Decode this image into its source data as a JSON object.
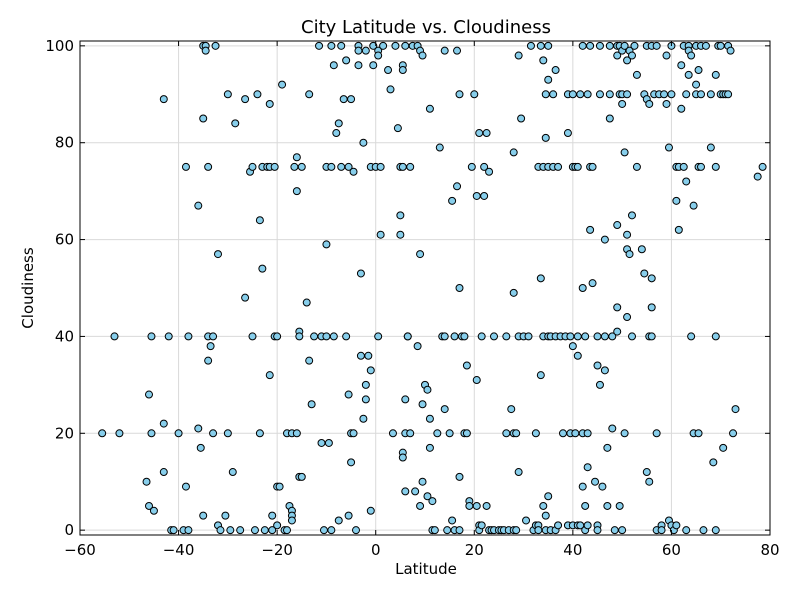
{
  "chart_data": {
    "type": "scatter",
    "title": "City Latitude vs. Cloudiness",
    "xlabel": "Latitude",
    "ylabel": "Cloudiness",
    "xlim": [
      -60,
      80
    ],
    "ylim": [
      -1,
      101
    ],
    "xticks": [
      -60,
      -40,
      -20,
      0,
      20,
      40,
      60,
      80
    ],
    "yticks": [
      0,
      20,
      40,
      60,
      80,
      100
    ],
    "grid": true,
    "colors": {
      "marker_fill": "#87ceeb",
      "marker_edge": "#000000",
      "grid": "#d9d9d9"
    },
    "points": [
      [
        -55.5,
        20
      ],
      [
        -53,
        40
      ],
      [
        -52,
        20
      ],
      [
        -46.5,
        10
      ],
      [
        -46,
        28
      ],
      [
        -46,
        5
      ],
      [
        -45.5,
        40
      ],
      [
        -45.5,
        20
      ],
      [
        -45,
        4
      ],
      [
        -43,
        89
      ],
      [
        -43,
        22
      ],
      [
        -43,
        12
      ],
      [
        -42,
        40
      ],
      [
        -41.5,
        0
      ],
      [
        -41,
        0
      ],
      [
        -40,
        20
      ],
      [
        -39,
        0
      ],
      [
        -38.5,
        75
      ],
      [
        -38,
        40
      ],
      [
        -38,
        0
      ],
      [
        -38.5,
        9
      ],
      [
        -36,
        67
      ],
      [
        -36,
        21
      ],
      [
        -35.5,
        17
      ],
      [
        -35,
        100
      ],
      [
        -35,
        85
      ],
      [
        -35,
        3
      ],
      [
        -34.5,
        100
      ],
      [
        -34.5,
        99
      ],
      [
        -34,
        75
      ],
      [
        -34,
        40
      ],
      [
        -34,
        35
      ],
      [
        -33.5,
        38
      ],
      [
        -33,
        40
      ],
      [
        -33,
        20
      ],
      [
        -32.5,
        100
      ],
      [
        -32,
        57
      ],
      [
        -32,
        1
      ],
      [
        -31.5,
        0
      ],
      [
        -30.5,
        3
      ],
      [
        -30,
        20
      ],
      [
        -30,
        90
      ],
      [
        -29.5,
        0
      ],
      [
        -29,
        12
      ],
      [
        -28.5,
        84
      ],
      [
        -27.5,
        0
      ],
      [
        -26.5,
        89
      ],
      [
        -26.5,
        48
      ],
      [
        -25.5,
        74
      ],
      [
        -25,
        75
      ],
      [
        -25,
        40
      ],
      [
        -24.5,
        0
      ],
      [
        -24,
        90
      ],
      [
        -23.5,
        20
      ],
      [
        -23.5,
        64
      ],
      [
        -23,
        54
      ],
      [
        -23,
        75
      ],
      [
        -22.5,
        0
      ],
      [
        -22,
        75
      ],
      [
        -21.5,
        88
      ],
      [
        -21.5,
        75
      ],
      [
        -21.5,
        32
      ],
      [
        -21,
        3
      ],
      [
        -21,
        0
      ],
      [
        -20.5,
        75
      ],
      [
        -20.5,
        40
      ],
      [
        -20,
        40
      ],
      [
        -20,
        9
      ],
      [
        -20,
        1
      ],
      [
        -19.5,
        9
      ],
      [
        -19,
        92
      ],
      [
        -18.5,
        0
      ],
      [
        -18,
        0
      ],
      [
        -18,
        20
      ],
      [
        -17.5,
        5
      ],
      [
        -17,
        4
      ],
      [
        -17,
        3
      ],
      [
        -17,
        20
      ],
      [
        -17,
        2
      ],
      [
        -16.5,
        75
      ],
      [
        -16,
        70
      ],
      [
        -16,
        77
      ],
      [
        -16,
        20
      ],
      [
        -15.5,
        41
      ],
      [
        -15.5,
        11
      ],
      [
        -15.5,
        40
      ],
      [
        -15,
        11
      ],
      [
        -15,
        75
      ],
      [
        -14,
        47
      ],
      [
        -13.5,
        90
      ],
      [
        -13.5,
        35
      ],
      [
        -13,
        26
      ],
      [
        -12.5,
        40
      ],
      [
        -11.5,
        100
      ],
      [
        -11,
        40
      ],
      [
        -11,
        18
      ],
      [
        -10.5,
        0
      ],
      [
        -10,
        59
      ],
      [
        -10,
        40
      ],
      [
        -10,
        75
      ],
      [
        -9.5,
        18
      ],
      [
        -9,
        100
      ],
      [
        -9,
        75
      ],
      [
        -9,
        0
      ],
      [
        -8.5,
        96
      ],
      [
        -8,
        82
      ],
      [
        -8.5,
        40
      ],
      [
        -7.5,
        2
      ],
      [
        -7.5,
        84
      ],
      [
        -7,
        100
      ],
      [
        -7,
        75
      ],
      [
        -6.5,
        89
      ],
      [
        -6,
        40
      ],
      [
        -6,
        97
      ],
      [
        -5.5,
        75
      ],
      [
        -5.5,
        28
      ],
      [
        -5.5,
        3
      ],
      [
        -5,
        14
      ],
      [
        -5,
        89
      ],
      [
        -5,
        20
      ],
      [
        -4.5,
        74
      ],
      [
        -4.5,
        20
      ],
      [
        -4,
        0
      ],
      [
        -3.5,
        100
      ],
      [
        -3.5,
        99
      ],
      [
        -3.5,
        96
      ],
      [
        -3,
        53
      ],
      [
        -3,
        36
      ],
      [
        -2.5,
        80
      ],
      [
        -2.5,
        23
      ],
      [
        -2,
        27
      ],
      [
        -2,
        30
      ],
      [
        -2,
        99
      ],
      [
        -1.5,
        36
      ],
      [
        -1,
        75
      ],
      [
        -1,
        4
      ],
      [
        -1,
        33
      ],
      [
        -0.5,
        100
      ],
      [
        -0.5,
        96
      ],
      [
        0,
        75
      ],
      [
        0.5,
        40
      ],
      [
        0.5,
        99
      ],
      [
        0.5,
        98
      ],
      [
        1,
        61
      ],
      [
        1,
        75
      ],
      [
        1.5,
        100
      ],
      [
        2.5,
        95
      ],
      [
        3,
        91
      ],
      [
        3.5,
        20
      ],
      [
        4,
        100
      ],
      [
        4.5,
        83
      ],
      [
        5,
        75
      ],
      [
        5,
        61
      ],
      [
        5,
        65
      ],
      [
        5.5,
        96
      ],
      [
        5.5,
        95
      ],
      [
        5.5,
        75
      ],
      [
        5.5,
        16
      ],
      [
        5.5,
        15
      ],
      [
        6,
        27
      ],
      [
        6,
        20
      ],
      [
        6,
        8
      ],
      [
        6,
        100
      ],
      [
        6.5,
        40
      ],
      [
        6.5,
        40
      ],
      [
        7,
        75
      ],
      [
        7,
        20
      ],
      [
        7.5,
        100
      ],
      [
        8,
        8
      ],
      [
        8.5,
        100
      ],
      [
        8.5,
        38
      ],
      [
        9,
        57
      ],
      [
        9,
        99
      ],
      [
        9,
        5
      ],
      [
        9.5,
        98
      ],
      [
        9.5,
        26
      ],
      [
        9.5,
        10
      ],
      [
        10,
        30
      ],
      [
        10.5,
        7
      ],
      [
        10.5,
        29
      ],
      [
        11,
        87
      ],
      [
        11,
        23
      ],
      [
        11,
        17
      ],
      [
        11.5,
        6
      ],
      [
        11.5,
        0
      ],
      [
        12,
        0
      ],
      [
        12.5,
        20
      ],
      [
        13,
        79
      ],
      [
        13.5,
        40
      ],
      [
        14,
        99
      ],
      [
        14,
        40
      ],
      [
        14,
        25
      ],
      [
        14.5,
        0
      ],
      [
        15,
        20
      ],
      [
        15.5,
        68
      ],
      [
        15.5,
        2
      ],
      [
        16,
        40
      ],
      [
        16,
        0
      ],
      [
        16.5,
        99
      ],
      [
        16.5,
        71
      ],
      [
        17,
        90
      ],
      [
        17,
        50
      ],
      [
        17,
        11
      ],
      [
        17,
        0
      ],
      [
        17.5,
        40
      ],
      [
        18,
        20
      ],
      [
        18,
        40
      ],
      [
        18.5,
        20
      ],
      [
        18.5,
        34
      ],
      [
        19,
        6
      ],
      [
        19,
        5
      ],
      [
        19.5,
        75
      ],
      [
        20,
        90
      ],
      [
        20.5,
        69
      ],
      [
        20.5,
        31
      ],
      [
        20.5,
        5
      ],
      [
        21,
        82
      ],
      [
        21,
        1
      ],
      [
        21,
        0
      ],
      [
        21.5,
        40
      ],
      [
        21.5,
        1
      ],
      [
        22,
        75
      ],
      [
        22,
        69
      ],
      [
        22.5,
        82
      ],
      [
        22.5,
        5
      ],
      [
        23,
        74
      ],
      [
        23,
        0
      ],
      [
        23.5,
        0
      ],
      [
        24,
        40
      ],
      [
        24,
        0
      ],
      [
        25,
        0
      ],
      [
        25.5,
        0
      ],
      [
        26,
        0
      ],
      [
        26.5,
        40
      ],
      [
        26.5,
        20
      ],
      [
        27,
        0
      ],
      [
        27.5,
        25
      ],
      [
        28,
        78
      ],
      [
        28,
        49
      ],
      [
        28,
        20
      ],
      [
        28,
        0
      ],
      [
        28.5,
        20
      ],
      [
        28.5,
        0
      ],
      [
        29,
        40
      ],
      [
        29,
        12
      ],
      [
        29,
        98
      ],
      [
        29.5,
        85
      ],
      [
        30,
        40
      ],
      [
        30.5,
        2
      ],
      [
        31,
        40
      ],
      [
        31.5,
        100
      ],
      [
        32,
        0
      ],
      [
        32.5,
        1
      ],
      [
        32.5,
        20
      ],
      [
        33,
        75
      ],
      [
        33,
        1
      ],
      [
        33,
        0
      ],
      [
        33.5,
        100
      ],
      [
        33.5,
        52
      ],
      [
        33.5,
        32
      ],
      [
        34,
        97
      ],
      [
        34,
        75
      ],
      [
        34,
        5
      ],
      [
        34,
        40
      ],
      [
        34.5,
        81
      ],
      [
        34.5,
        90
      ],
      [
        34.5,
        3
      ],
      [
        34.5,
        0
      ],
      [
        35,
        100
      ],
      [
        35,
        93
      ],
      [
        35,
        75
      ],
      [
        35,
        40
      ],
      [
        35,
        7
      ],
      [
        35.5,
        40
      ],
      [
        35.5,
        0
      ],
      [
        36,
        90
      ],
      [
        36,
        75
      ],
      [
        36.5,
        95
      ],
      [
        36.5,
        40
      ],
      [
        36.5,
        0
      ],
      [
        37,
        75
      ],
      [
        37,
        1
      ],
      [
        37.5,
        40
      ],
      [
        38,
        20
      ],
      [
        38.5,
        40
      ],
      [
        39,
        90
      ],
      [
        39,
        82
      ],
      [
        39,
        1
      ],
      [
        39.5,
        20
      ],
      [
        39.5,
        40
      ],
      [
        40,
        90
      ],
      [
        40,
        75
      ],
      [
        40,
        38
      ],
      [
        40,
        1
      ],
      [
        40.5,
        75
      ],
      [
        40.5,
        20
      ],
      [
        41,
        75
      ],
      [
        41,
        40
      ],
      [
        41,
        36
      ],
      [
        41,
        1
      ],
      [
        41.5,
        90
      ],
      [
        41.5,
        1
      ],
      [
        42,
        100
      ],
      [
        42,
        50
      ],
      [
        42,
        9
      ],
      [
        42,
        20
      ],
      [
        42.5,
        40
      ],
      [
        42.5,
        5
      ],
      [
        42.5,
        0
      ],
      [
        43,
        90
      ],
      [
        43,
        13
      ],
      [
        43,
        1
      ],
      [
        43,
        20
      ],
      [
        43.5,
        100
      ],
      [
        43.5,
        62
      ],
      [
        43.5,
        75
      ],
      [
        44,
        51
      ],
      [
        44,
        75
      ],
      [
        44.5,
        10
      ],
      [
        45,
        40
      ],
      [
        45,
        34
      ],
      [
        45,
        1
      ],
      [
        45,
        0
      ],
      [
        45.5,
        100
      ],
      [
        45.5,
        90
      ],
      [
        45.5,
        30
      ],
      [
        46,
        9
      ],
      [
        46.5,
        40
      ],
      [
        46.5,
        60
      ],
      [
        46.5,
        33
      ],
      [
        47,
        5
      ],
      [
        47,
        17
      ],
      [
        47.5,
        100
      ],
      [
        47.5,
        85
      ],
      [
        47.5,
        90
      ],
      [
        48,
        21
      ],
      [
        48,
        40
      ],
      [
        48.5,
        0
      ],
      [
        49,
        100
      ],
      [
        49,
        98
      ],
      [
        49,
        63
      ],
      [
        49,
        46
      ],
      [
        49,
        41
      ],
      [
        49.5,
        100
      ],
      [
        49.5,
        90
      ],
      [
        49.5,
        5
      ],
      [
        50,
        88
      ],
      [
        50,
        90
      ],
      [
        50,
        99
      ],
      [
        50,
        0
      ],
      [
        50.5,
        78
      ],
      [
        50.5,
        100
      ],
      [
        50.5,
        20
      ],
      [
        51,
        97
      ],
      [
        51,
        61
      ],
      [
        51,
        58
      ],
      [
        51,
        44
      ],
      [
        51,
        90
      ],
      [
        51.5,
        99
      ],
      [
        51.5,
        57
      ],
      [
        52,
        65
      ],
      [
        52,
        98
      ],
      [
        52,
        40
      ],
      [
        52.5,
        100
      ],
      [
        53,
        75
      ],
      [
        53,
        94
      ],
      [
        54,
        58
      ],
      [
        54.5,
        53
      ],
      [
        54.5,
        90
      ],
      [
        55,
        12
      ],
      [
        55,
        100
      ],
      [
        55,
        89
      ],
      [
        55.5,
        88
      ],
      [
        55.5,
        40
      ],
      [
        55.5,
        10
      ],
      [
        56,
        52
      ],
      [
        56,
        46
      ],
      [
        56,
        40
      ],
      [
        56,
        100
      ],
      [
        56.5,
        90
      ],
      [
        57,
        20
      ],
      [
        57,
        0
      ],
      [
        57,
        100
      ],
      [
        57.5,
        90
      ],
      [
        58,
        1
      ],
      [
        58,
        0
      ],
      [
        58.5,
        90
      ],
      [
        59,
        98
      ],
      [
        59,
        88
      ],
      [
        59.5,
        79
      ],
      [
        59.5,
        2
      ],
      [
        60,
        100
      ],
      [
        60,
        90
      ],
      [
        60,
        1
      ],
      [
        60.5,
        0
      ],
      [
        61,
        75
      ],
      [
        61,
        68
      ],
      [
        61,
        1
      ],
      [
        61.5,
        75
      ],
      [
        61.5,
        62
      ],
      [
        62,
        96
      ],
      [
        62,
        87
      ],
      [
        62.5,
        100
      ],
      [
        62.5,
        75
      ],
      [
        63,
        0
      ],
      [
        63,
        90
      ],
      [
        63,
        72
      ],
      [
        63.5,
        100
      ],
      [
        63.5,
        94
      ],
      [
        63.5,
        99
      ],
      [
        64,
        98
      ],
      [
        64,
        40
      ],
      [
        64.5,
        67
      ],
      [
        64.5,
        20
      ],
      [
        65,
        100
      ],
      [
        65,
        90
      ],
      [
        65,
        92
      ],
      [
        65.5,
        95
      ],
      [
        65.5,
        75
      ],
      [
        65.5,
        20
      ],
      [
        66,
        75
      ],
      [
        66,
        90
      ],
      [
        66,
        100
      ],
      [
        66.5,
        0
      ],
      [
        67,
        100
      ],
      [
        68,
        90
      ],
      [
        68,
        79
      ],
      [
        68.5,
        14
      ],
      [
        69,
        75
      ],
      [
        69,
        40
      ],
      [
        69,
        0
      ],
      [
        69,
        94
      ],
      [
        69.5,
        100
      ],
      [
        70,
        90
      ],
      [
        70,
        100
      ],
      [
        70.5,
        90
      ],
      [
        70.5,
        17
      ],
      [
        71,
        90
      ],
      [
        71.5,
        90
      ],
      [
        71.5,
        100
      ],
      [
        72,
        99
      ],
      [
        72.5,
        20
      ],
      [
        73,
        25
      ],
      [
        77.5,
        73
      ],
      [
        78.5,
        75
      ]
    ]
  }
}
